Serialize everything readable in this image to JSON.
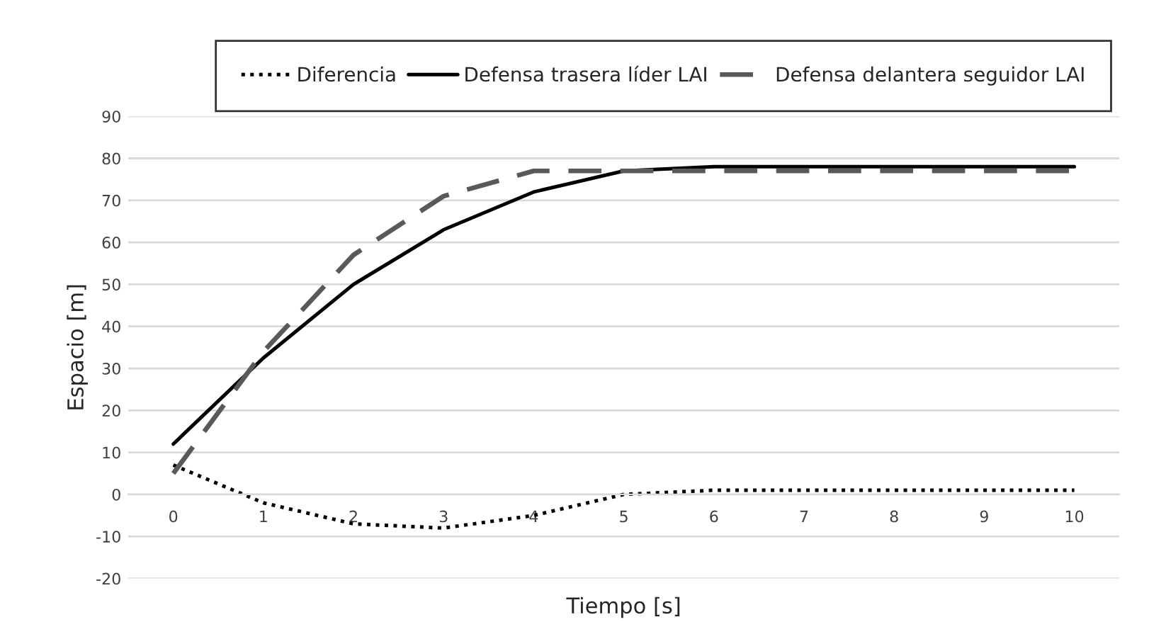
{
  "chart_data": {
    "type": "line",
    "xlabel": "Tiempo [s]",
    "ylabel": "Espacio [m]",
    "categories": [
      "0",
      "1",
      "2",
      "3",
      "4",
      "5",
      "6",
      "7",
      "8",
      "9",
      "10"
    ],
    "series": [
      {
        "name": "Diferencia",
        "color": "#000000",
        "line_style": "dotted",
        "values": [
          7,
          -2,
          -7,
          -8,
          -5,
          0,
          1,
          1,
          1,
          1,
          1
        ]
      },
      {
        "name": "Defensa trasera líder LAI",
        "color": "#000000",
        "line_style": "solid",
        "values": [
          12,
          32.5,
          50,
          63,
          72,
          77,
          78,
          78,
          78,
          78,
          78
        ]
      },
      {
        "name": "Defensa delantera seguidor LAI",
        "color": "#595959",
        "line_style": "dashed",
        "values": [
          5,
          34,
          57,
          71,
          77,
          77,
          77,
          77,
          77,
          77,
          77
        ]
      }
    ],
    "ylim": [
      -20,
      90
    ],
    "yticks": [
      -20,
      -10,
      0,
      10,
      20,
      30,
      40,
      50,
      60,
      70,
      80,
      90
    ],
    "grid": "y",
    "legend": "top",
    "marker": "none"
  }
}
